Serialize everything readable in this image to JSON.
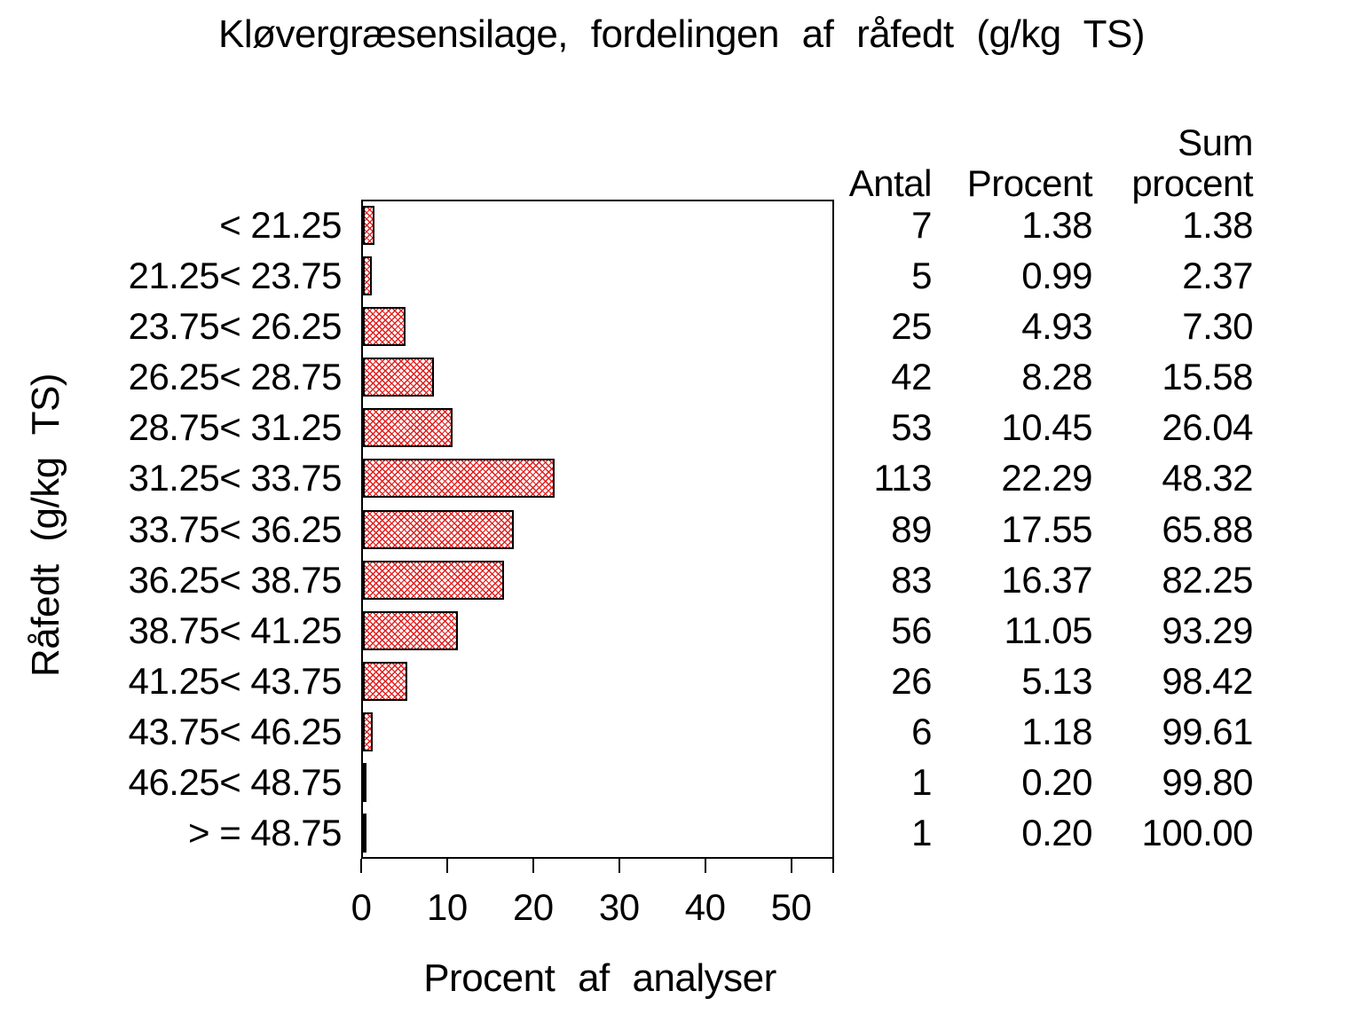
{
  "title": "Kløvergræsensilage, fordelingen af råfedt (g/kg TS)",
  "colors": {
    "hatch_red": "#e31b1b",
    "frame_black": "#000000",
    "background": "#ffffff",
    "text": "#000000"
  },
  "chart_data": {
    "type": "bar",
    "orientation": "horizontal",
    "title": "Kløvergræsensilage, fordelingen af råfedt (g/kg TS)",
    "xlabel": "Procent af analyser",
    "ylabel": "Råfedt (g/kg TS)",
    "xlim": [
      0,
      55
    ],
    "xticks": [
      0,
      10,
      20,
      30,
      40,
      50
    ],
    "grid": false,
    "legend": "none",
    "bar_style": "red diagonal crosshatch, black outline",
    "categories": [
      "< 21.25",
      "21.25< 23.75",
      "23.75< 26.25",
      "26.25< 28.75",
      "28.75< 31.25",
      "31.25< 33.75",
      "33.75< 36.25",
      "36.25< 38.75",
      "38.75< 41.25",
      "41.25< 43.75",
      "43.75< 46.25",
      "46.25< 48.75",
      "> = 48.75"
    ],
    "values": [
      1.38,
      0.99,
      4.93,
      8.28,
      10.45,
      22.29,
      17.55,
      16.37,
      11.05,
      5.13,
      1.18,
      0.2,
      0.2
    ],
    "series": [
      {
        "name": "Antal",
        "values": [
          7,
          5,
          25,
          42,
          53,
          113,
          89,
          83,
          56,
          26,
          6,
          1,
          1
        ]
      },
      {
        "name": "Procent",
        "values": [
          1.38,
          0.99,
          4.93,
          8.28,
          10.45,
          22.29,
          17.55,
          16.37,
          11.05,
          5.13,
          1.18,
          0.2,
          0.2
        ]
      },
      {
        "name": "Sum procent",
        "values": [
          1.38,
          2.37,
          7.3,
          15.58,
          26.04,
          48.32,
          65.88,
          82.25,
          93.29,
          98.42,
          99.61,
          99.8,
          100.0
        ]
      }
    ]
  },
  "table": {
    "headers": {
      "antal": "Antal",
      "procent": "Procent",
      "sum_line1": "Sum",
      "sum_line2": "procent"
    },
    "rows": [
      {
        "antal": "7",
        "procent": "1.38",
        "sum": "1.38"
      },
      {
        "antal": "5",
        "procent": "0.99",
        "sum": "2.37"
      },
      {
        "antal": "25",
        "procent": "4.93",
        "sum": "7.30"
      },
      {
        "antal": "42",
        "procent": "8.28",
        "sum": "15.58"
      },
      {
        "antal": "53",
        "procent": "10.45",
        "sum": "26.04"
      },
      {
        "antal": "113",
        "procent": "22.29",
        "sum": "48.32"
      },
      {
        "antal": "89",
        "procent": "17.55",
        "sum": "65.88"
      },
      {
        "antal": "83",
        "procent": "16.37",
        "sum": "82.25"
      },
      {
        "antal": "56",
        "procent": "11.05",
        "sum": "93.29"
      },
      {
        "antal": "26",
        "procent": "5.13",
        "sum": "98.42"
      },
      {
        "antal": "6",
        "procent": "1.18",
        "sum": "99.61"
      },
      {
        "antal": "1",
        "procent": "0.20",
        "sum": "99.80"
      },
      {
        "antal": "1",
        "procent": "0.20",
        "sum": "100.00"
      }
    ]
  }
}
